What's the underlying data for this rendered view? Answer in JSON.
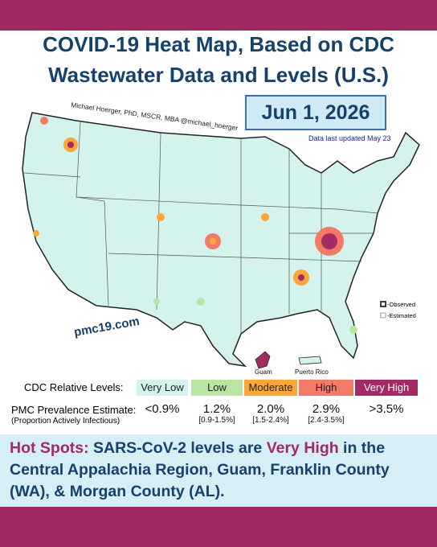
{
  "header": {
    "title_lines": [
      "COVID-19 Heat Map, Based on CDC",
      "Wastewater Data and Levels (U.S.)"
    ],
    "date": "Jun 1, 2026",
    "updated": "Data last updated May 23"
  },
  "map": {
    "credit": "Michael Hoerger, PhD, MSCR, MBA @michael_hoerger",
    "website": "pmc19.com",
    "territories": [
      "Guam",
      "Puerto Rico"
    ],
    "marker_legend": [
      "-Observed",
      "-Estimated"
    ]
  },
  "legend": {
    "levels_label": "CDC Relative Levels:",
    "levels": [
      {
        "label": "Very Low",
        "color": "#d4f3ec"
      },
      {
        "label": "Low",
        "color": "#b9e5a2"
      },
      {
        "label": "Moderate",
        "color": "#fba636"
      },
      {
        "label": "High",
        "color": "#f47a68"
      },
      {
        "label": "Very High",
        "color": "#a32a64"
      }
    ],
    "prevalence_label": "PMC Prevalence Estimate:",
    "prevalence_sub": "(Proportion Actively Infectious)",
    "estimates": [
      {
        "value": "<0.9%"
      },
      {
        "value": "1.2%",
        "range": "[0.9-1.5%]"
      },
      {
        "value": "2.0%",
        "range": "[1.5-2.4%]"
      },
      {
        "value": "2.9%",
        "range": "[2.4-3.5%]"
      },
      {
        "value": ">3.5%"
      }
    ]
  },
  "hot_spots": {
    "segments": [
      {
        "text": "Hot Spots:",
        "highlight": true
      },
      {
        "text": " SARS-CoV-2 levels are ",
        "highlight": false
      },
      {
        "text": "Very High",
        "highlight": true
      },
      {
        "text": " in the Central Appalachia Region, Guam, Franklin County (WA), & Morgan County (AL).",
        "highlight": false
      }
    ]
  }
}
